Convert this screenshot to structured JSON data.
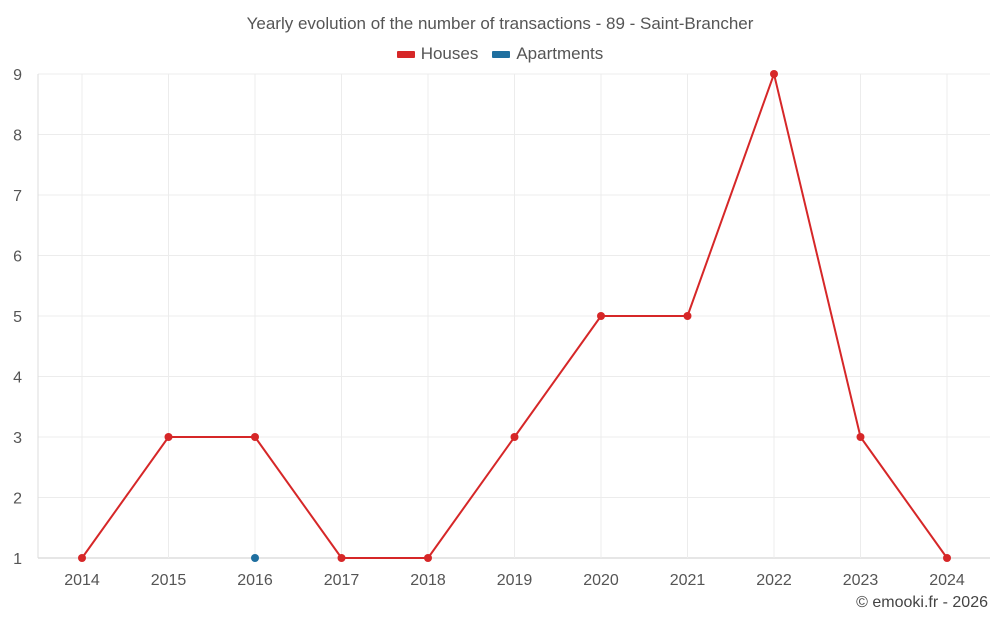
{
  "chart_data": {
    "type": "line",
    "title": "Yearly evolution of the number of transactions - 89 - Saint-Brancher",
    "categories": [
      "2014",
      "2015",
      "2016",
      "2017",
      "2018",
      "2019",
      "2020",
      "2021",
      "2022",
      "2023",
      "2024"
    ],
    "series": [
      {
        "name": "Houses",
        "color": "#d62728",
        "values": [
          1,
          3,
          3,
          1,
          1,
          3,
          5,
          5,
          9,
          3,
          1
        ]
      },
      {
        "name": "Apartments",
        "color": "#1f6f9f",
        "values": [
          null,
          null,
          1,
          null,
          null,
          null,
          null,
          null,
          null,
          null,
          null
        ]
      }
    ],
    "yticks": [
      "1",
      "2",
      "3",
      "4",
      "5",
      "6",
      "7",
      "8",
      "9"
    ],
    "ylim": [
      1,
      9
    ],
    "grid": true,
    "legend_position": "top-center",
    "credit": "© emooki.fr - 2026"
  }
}
